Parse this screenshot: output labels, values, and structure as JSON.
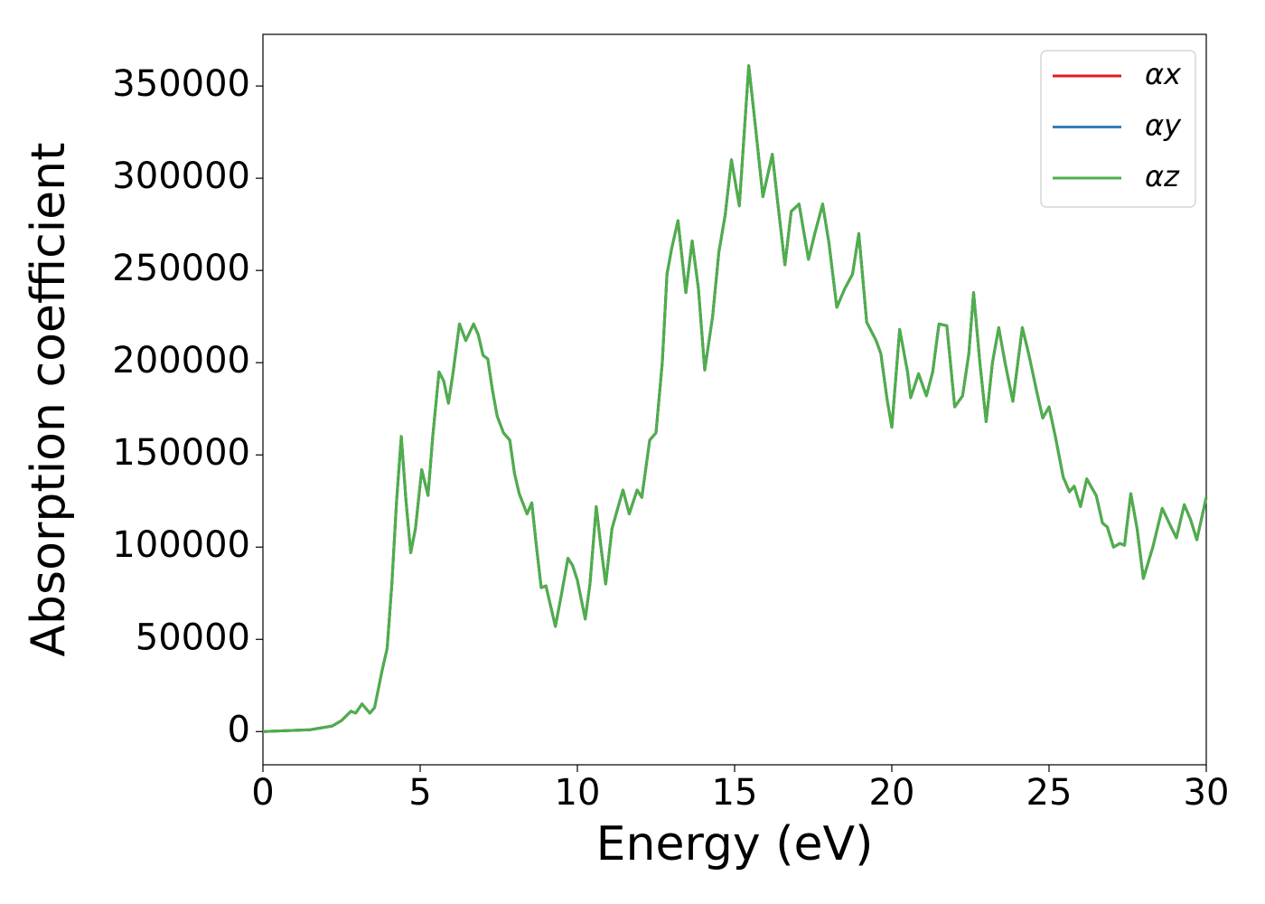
{
  "chart_data": {
    "type": "line",
    "xlabel": "Energy (eV)",
    "ylabel": "Absorption coefficient",
    "x": [
      0,
      1.5,
      2.2,
      2.5,
      2.8,
      2.95,
      3.15,
      3.4,
      3.55,
      3.8,
      3.95,
      4.1,
      4.25,
      4.4,
      4.55,
      4.7,
      4.85,
      5.05,
      5.25,
      5.4,
      5.6,
      5.75,
      5.9,
      6.05,
      6.25,
      6.45,
      6.7,
      6.85,
      7.0,
      7.15,
      7.3,
      7.45,
      7.65,
      7.85,
      8.0,
      8.15,
      8.4,
      8.55,
      8.7,
      8.85,
      9.0,
      9.3,
      9.5,
      9.7,
      9.85,
      10.0,
      10.25,
      10.4,
      10.6,
      10.75,
      10.9,
      11.1,
      11.3,
      11.45,
      11.65,
      11.9,
      12.05,
      12.3,
      12.5,
      12.7,
      12.85,
      13.0,
      13.2,
      13.45,
      13.65,
      13.85,
      14.05,
      14.3,
      14.5,
      14.7,
      14.9,
      15.15,
      15.45,
      15.65,
      15.9,
      16.2,
      16.35,
      16.6,
      16.8,
      17.05,
      17.35,
      17.55,
      17.8,
      18.0,
      18.25,
      18.5,
      18.75,
      18.95,
      19.2,
      19.5,
      19.65,
      19.85,
      20.0,
      20.25,
      20.5,
      20.6,
      20.85,
      21.1,
      21.3,
      21.5,
      21.75,
      22.0,
      22.25,
      22.45,
      22.6,
      22.8,
      23.0,
      23.2,
      23.4,
      23.6,
      23.85,
      24.15,
      24.35,
      24.6,
      24.8,
      25.0,
      25.2,
      25.45,
      25.65,
      25.8,
      26.0,
      26.2,
      26.5,
      26.7,
      26.85,
      27.05,
      27.25,
      27.4,
      27.6,
      27.8,
      28.0,
      28.3,
      28.6,
      28.85,
      29.05,
      29.3,
      29.5,
      29.7,
      30.0
    ],
    "series": [
      {
        "name": "αx",
        "color": "#e41a1c",
        "values": [
          0,
          1000,
          3000,
          6000,
          11000,
          10000,
          15000,
          10000,
          13000,
          34000,
          45000,
          80000,
          125000,
          160000,
          125000,
          97000,
          110000,
          142000,
          128000,
          160000,
          195000,
          190000,
          178000,
          195000,
          221000,
          212000,
          221000,
          215000,
          204000,
          202000,
          185000,
          171000,
          162000,
          158000,
          140000,
          129000,
          118000,
          124000,
          100000,
          78000,
          79000,
          57000,
          75000,
          94000,
          90000,
          82000,
          61000,
          80000,
          122000,
          100000,
          80000,
          110000,
          122000,
          131000,
          118000,
          131000,
          127000,
          158000,
          162000,
          200000,
          248000,
          262000,
          277000,
          238000,
          266000,
          240000,
          196000,
          225000,
          260000,
          280000,
          310000,
          285000,
          361000,
          330000,
          290000,
          313000,
          290000,
          253000,
          282000,
          286000,
          256000,
          270000,
          286000,
          265000,
          230000,
          240000,
          248000,
          270000,
          222000,
          212000,
          205000,
          180000,
          165000,
          218000,
          195000,
          181000,
          194000,
          182000,
          195000,
          221000,
          220000,
          176000,
          182000,
          205000,
          238000,
          200000,
          168000,
          200000,
          219000,
          200000,
          179000,
          219000,
          205000,
          185000,
          170000,
          176000,
          160000,
          138000,
          130000,
          133000,
          122000,
          137000,
          128000,
          113000,
          111000,
          100000,
          102000,
          101000,
          129000,
          110000,
          83000,
          100000,
          121000,
          112000,
          105000,
          123000,
          115000,
          104000,
          127000
        ]
      },
      {
        "name": "αy",
        "color": "#377eb8",
        "values": [
          0,
          1000,
          3000,
          6000,
          11000,
          10000,
          15000,
          10000,
          13000,
          34000,
          45000,
          80000,
          125000,
          160000,
          125000,
          97000,
          110000,
          142000,
          128000,
          160000,
          195000,
          190000,
          178000,
          195000,
          221000,
          212000,
          221000,
          215000,
          204000,
          202000,
          185000,
          171000,
          162000,
          158000,
          140000,
          129000,
          118000,
          124000,
          100000,
          78000,
          79000,
          57000,
          75000,
          94000,
          90000,
          82000,
          61000,
          80000,
          122000,
          100000,
          80000,
          110000,
          122000,
          131000,
          118000,
          131000,
          127000,
          158000,
          162000,
          200000,
          248000,
          262000,
          277000,
          238000,
          266000,
          240000,
          196000,
          225000,
          260000,
          280000,
          310000,
          285000,
          361000,
          330000,
          290000,
          313000,
          290000,
          253000,
          282000,
          286000,
          256000,
          270000,
          286000,
          265000,
          230000,
          240000,
          248000,
          270000,
          222000,
          212000,
          205000,
          180000,
          165000,
          218000,
          195000,
          181000,
          194000,
          182000,
          195000,
          221000,
          220000,
          176000,
          182000,
          205000,
          238000,
          200000,
          168000,
          200000,
          219000,
          200000,
          179000,
          219000,
          205000,
          185000,
          170000,
          176000,
          160000,
          138000,
          130000,
          133000,
          122000,
          137000,
          128000,
          113000,
          111000,
          100000,
          102000,
          101000,
          129000,
          110000,
          83000,
          100000,
          121000,
          112000,
          105000,
          123000,
          115000,
          104000,
          127000
        ]
      },
      {
        "name": "αz",
        "color": "#4daf4a",
        "values": [
          0,
          1000,
          3000,
          6000,
          11000,
          10000,
          15000,
          10000,
          13000,
          34000,
          45000,
          80000,
          125000,
          160000,
          125000,
          97000,
          110000,
          142000,
          128000,
          160000,
          195000,
          190000,
          178000,
          195000,
          221000,
          212000,
          221000,
          215000,
          204000,
          202000,
          185000,
          171000,
          162000,
          158000,
          140000,
          129000,
          118000,
          124000,
          100000,
          78000,
          79000,
          57000,
          75000,
          94000,
          90000,
          82000,
          61000,
          80000,
          122000,
          100000,
          80000,
          110000,
          122000,
          131000,
          118000,
          131000,
          127000,
          158000,
          162000,
          200000,
          248000,
          262000,
          277000,
          238000,
          266000,
          240000,
          196000,
          225000,
          260000,
          280000,
          310000,
          285000,
          361000,
          330000,
          290000,
          313000,
          290000,
          253000,
          282000,
          286000,
          256000,
          270000,
          286000,
          265000,
          230000,
          240000,
          248000,
          270000,
          222000,
          212000,
          205000,
          180000,
          165000,
          218000,
          195000,
          181000,
          194000,
          182000,
          195000,
          221000,
          220000,
          176000,
          182000,
          205000,
          238000,
          200000,
          168000,
          200000,
          219000,
          200000,
          179000,
          219000,
          205000,
          185000,
          170000,
          176000,
          160000,
          138000,
          130000,
          133000,
          122000,
          137000,
          128000,
          113000,
          111000,
          100000,
          102000,
          101000,
          129000,
          110000,
          83000,
          100000,
          121000,
          112000,
          105000,
          123000,
          115000,
          104000,
          127000
        ]
      }
    ],
    "xlim": [
      0,
      30
    ],
    "xticks": [
      0,
      5,
      10,
      15,
      20,
      25,
      30
    ],
    "ylim": [
      -18000,
      378000
    ],
    "yticks": [
      0,
      50000,
      100000,
      150000,
      200000,
      250000,
      300000,
      350000
    ],
    "legend": "upper right",
    "grid": false
  }
}
